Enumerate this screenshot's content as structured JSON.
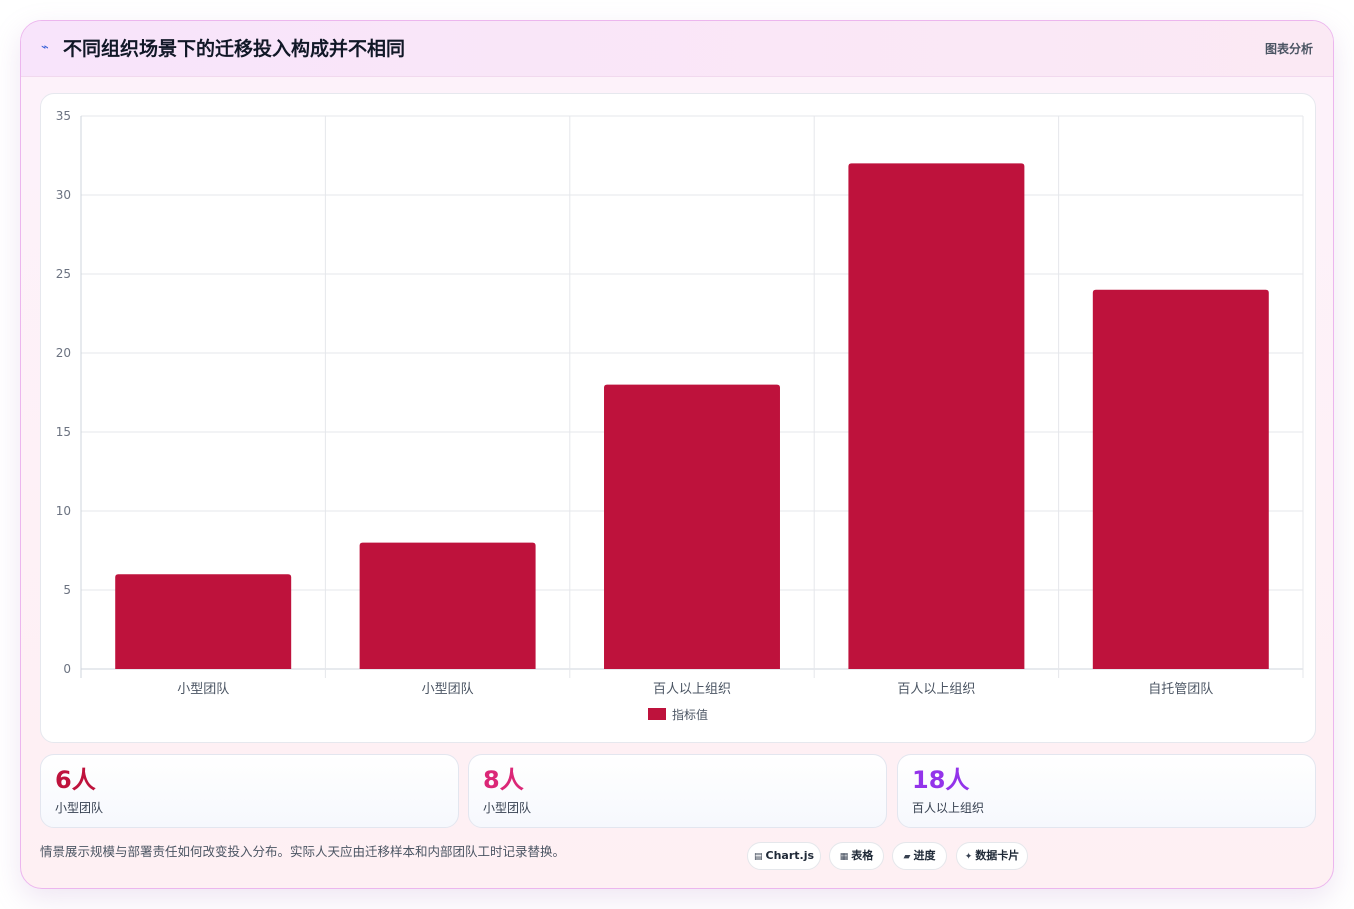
{
  "header": {
    "icon": "sparkline-icon",
    "title": "不同组织场景下的迁移投入构成并不相同",
    "tag": "图表分析"
  },
  "colors": {
    "bar": "#be123c",
    "kpi_values": [
      "#be123c",
      "#db2777",
      "#9333ea"
    ]
  },
  "chart_data": {
    "type": "bar",
    "categories": [
      "小型团队",
      "小型团队",
      "百人以上组织",
      "百人以上组织",
      "自托管团队"
    ],
    "series": [
      {
        "name": "指标值",
        "values": [
          6,
          8,
          18,
          32,
          24
        ]
      }
    ],
    "ylim": [
      0,
      35
    ],
    "yticks": [
      "0",
      "5",
      "10",
      "15",
      "20",
      "25",
      "30",
      "35"
    ],
    "grid": true,
    "legend": "bottom"
  },
  "kpis": [
    {
      "value": "6人",
      "label": "小型团队"
    },
    {
      "value": "8人",
      "label": "小型团队"
    },
    {
      "value": "18人",
      "label": "百人以上组织"
    }
  ],
  "footnote": "情景展示规模与部署责任如何改变投入分布。实际人天应由迁移样本和内部团队工时记录替换。",
  "tags": [
    {
      "icon": "chart-icon",
      "glyph": "▤",
      "label": "Chart.js"
    },
    {
      "icon": "table-icon",
      "glyph": "▦",
      "label": "表格"
    },
    {
      "icon": "progress-icon",
      "glyph": "▰",
      "label": "进度"
    },
    {
      "icon": "card-icon",
      "glyph": "✦",
      "label": "数据卡片"
    }
  ]
}
